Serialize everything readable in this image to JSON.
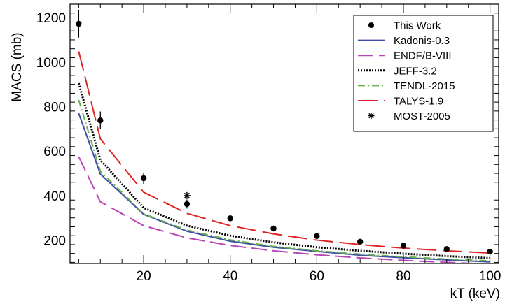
{
  "chart_data": {
    "type": "line",
    "xlabel": "kT (keV)",
    "ylabel": "MACS (mb)",
    "xlim": [
      3,
      102
    ],
    "ylim": [
      95,
      1260
    ],
    "x_ticks": [
      20,
      40,
      60,
      80,
      100
    ],
    "x_tick_labels": [
      "20",
      "40",
      "60",
      "80",
      "100"
    ],
    "y_ticks": [
      200,
      400,
      600,
      800,
      1000,
      1200
    ],
    "y_tick_labels": [
      "200",
      "400",
      "600",
      "800",
      "1000",
      "1200"
    ],
    "legend_position": "top-right",
    "grid": false,
    "series": [
      {
        "name": "This Work",
        "kind": "points",
        "marker": "dot",
        "color": "#000000",
        "x": [
          5,
          10,
          20,
          30,
          40,
          50,
          60,
          70,
          80,
          90,
          100
        ],
        "y": [
          1172,
          738,
          478,
          362,
          298,
          252,
          218,
          193,
          175,
          160,
          148
        ],
        "err": [
          62,
          40,
          25,
          20,
          14,
          12,
          9,
          8,
          7,
          6,
          5
        ]
      },
      {
        "name": "Kadonis-0.3",
        "kind": "line",
        "color": "#3f4ea6",
        "dash": "",
        "x": [
          5,
          10,
          20,
          30,
          40,
          50,
          60,
          70,
          80,
          90,
          100
        ],
        "y": [
          770,
          497,
          316,
          240,
          195,
          168,
          149,
          132,
          121,
          111,
          102
        ]
      },
      {
        "name": "ENDF/B-VIII",
        "kind": "line",
        "color": "#b844b5",
        "dash": "22,8",
        "x": [
          5,
          10,
          20,
          30,
          40,
          50,
          60,
          70,
          80,
          90,
          100
        ],
        "y": [
          575,
          372,
          265,
          210,
          176,
          152,
          134,
          120,
          109,
          100,
          92
        ]
      },
      {
        "name": "JEFF-3.2",
        "kind": "line",
        "color": "#000000",
        "dash": "2,2",
        "width": 3,
        "x": [
          5,
          10,
          20,
          30,
          40,
          50,
          60,
          70,
          80,
          90,
          100
        ],
        "y": [
          905,
          560,
          345,
          265,
          220,
          190,
          168,
          152,
          139,
          128,
          119
        ]
      },
      {
        "name": "TENDL-2015",
        "kind": "line",
        "color": "#6ab04c",
        "dash": "10,4,2,4",
        "x": [
          5,
          10,
          20,
          30,
          40,
          50,
          60,
          70,
          80,
          90,
          100
        ],
        "y": [
          830,
          510,
          318,
          245,
          201,
          172,
          152,
          137,
          125,
          115,
          107
        ]
      },
      {
        "name": "TALYS-1.9",
        "kind": "line",
        "color": "#e02424",
        "dash": "28,9",
        "x": [
          5,
          10,
          20,
          30,
          40,
          50,
          60,
          70,
          80,
          90,
          100
        ],
        "y": [
          1048,
          655,
          415,
          320,
          265,
          228,
          200,
          180,
          164,
          152,
          142
        ]
      },
      {
        "name": "MOST-2005",
        "kind": "points",
        "marker": "star",
        "color": "#000000",
        "x": [
          30
        ],
        "y": [
          400
        ]
      }
    ]
  }
}
